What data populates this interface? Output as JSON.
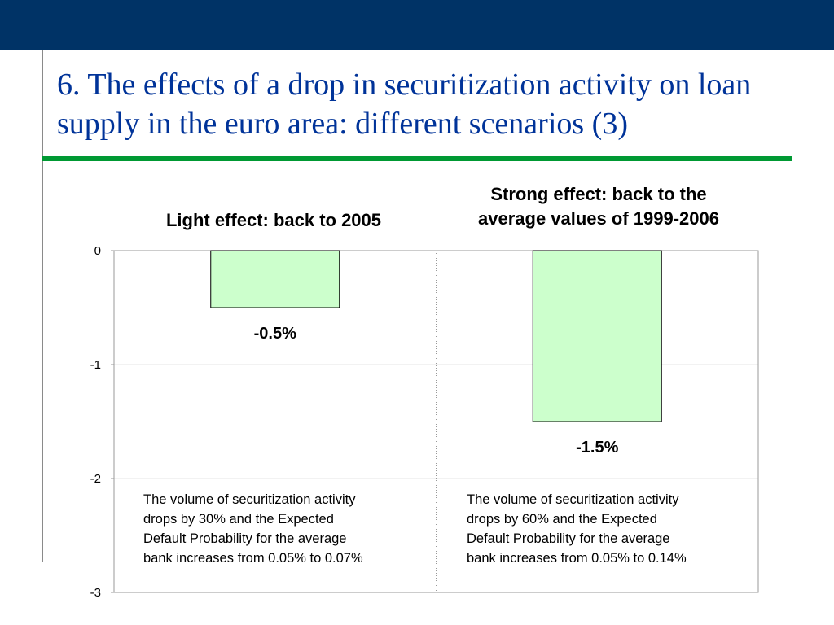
{
  "slide": {
    "title": "6. The effects of a drop in securitization activity on loan supply in the euro area: different scenarios (3)",
    "colors": {
      "topbar": "#003366",
      "title": "#003399",
      "rule": "#009933",
      "bar_fill": "#ccffcc",
      "bar_stroke": "#000000"
    }
  },
  "chart_data": {
    "type": "bar",
    "title": "",
    "xlabel": "",
    "ylabel": "",
    "ylim": [
      -3,
      0
    ],
    "yticks": [
      0,
      -1,
      -2,
      -3
    ],
    "grid": true,
    "categories": [
      "Light effect: back to 2005",
      "Strong effect: back to the\naverage values of 1999-2006"
    ],
    "values": [
      -0.5,
      -1.5
    ],
    "data_labels": [
      "-0.5%",
      "-1.5%"
    ],
    "annotations": [
      "The volume of securitization activity\ndrops by 30% and the Expected\nDefault Probability for the average\nbank increases from 0.05% to 0.07%",
      "The volume of securitization activity\ndrops by 60% and the Expected\nDefault Probability for the average\nbank increases from 0.05% to 0.14%"
    ]
  }
}
